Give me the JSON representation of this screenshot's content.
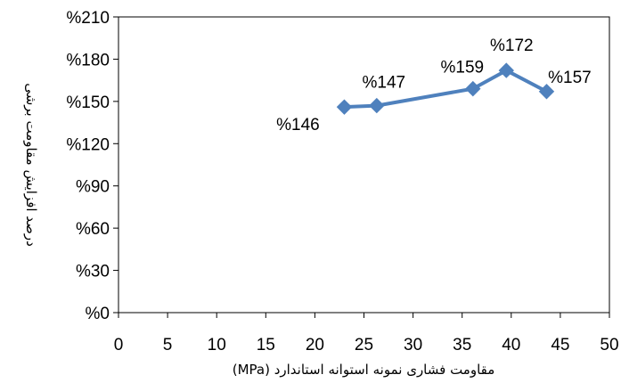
{
  "chart_data": {
    "type": "scatter",
    "mode": "lines+markers",
    "title": "",
    "xlabel": "مقاومت فشاری نمونه استوانه استاندارد (MPa)",
    "ylabel": "درصد افزایش مقاومت برشی",
    "xlim": [
      0,
      50
    ],
    "ylim": [
      0,
      210
    ],
    "x_ticks": [
      0,
      5,
      10,
      15,
      20,
      25,
      30,
      35,
      40,
      45,
      50
    ],
    "y_ticks": [
      0,
      30,
      60,
      90,
      120,
      150,
      180,
      210
    ],
    "y_tick_format": "%{v}",
    "x_tick_labels": [
      "0",
      "5",
      "10",
      "15",
      "20",
      "25",
      "30",
      "35",
      "40",
      "45",
      "50"
    ],
    "y_tick_labels": [
      "%0",
      "%30",
      "%60",
      "%90",
      "%120",
      "%150",
      "%180",
      "%210"
    ],
    "grid": false,
    "legend": "none",
    "marker": "diamond",
    "series": [
      {
        "color": "#4F81BD",
        "points": [
          {
            "x": 23.0,
            "y": 146,
            "label": "%146"
          },
          {
            "x": 26.3,
            "y": 147,
            "label": "%147"
          },
          {
            "x": 36.1,
            "y": 159,
            "label": "%159"
          },
          {
            "x": 39.5,
            "y": 172,
            "label": "%172"
          },
          {
            "x": 43.6,
            "y": 157,
            "label": "%157"
          }
        ]
      }
    ]
  }
}
